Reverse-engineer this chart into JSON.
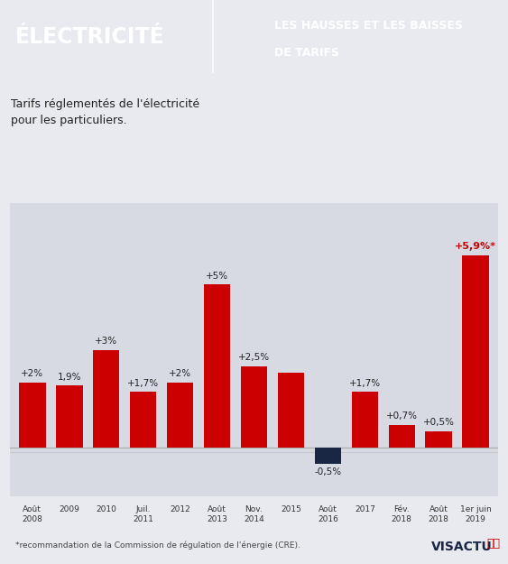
{
  "bars": [
    {
      "label": "Août\n2008",
      "value": 2.0,
      "color": "#cc0000",
      "text": "+2%"
    },
    {
      "label": "2009",
      "value": 1.9,
      "color": "#cc0000",
      "text": "1,9%"
    },
    {
      "label": "2010",
      "value": 3.0,
      "color": "#cc0000",
      "text": "+3%"
    },
    {
      "label": "Juil.\n2011",
      "value": 1.7,
      "color": "#cc0000",
      "text": "+1,7%"
    },
    {
      "label": "2012",
      "value": 2.0,
      "color": "#cc0000",
      "text": "+2%"
    },
    {
      "label": "Août\n2013",
      "value": 5.0,
      "color": "#cc0000",
      "text": "+5%"
    },
    {
      "label": "Nov.\n2014",
      "value": 2.5,
      "color": "#cc0000",
      "text": "+2,5%"
    },
    {
      "label": "2015",
      "value": 2.3,
      "color": "#cc0000",
      "text": ""
    },
    {
      "label": "Août\n2016",
      "value": -0.5,
      "color": "#1a2744",
      "text": "-0,5%"
    },
    {
      "label": "2017",
      "value": 1.7,
      "color": "#cc0000",
      "text": "+1,7%"
    },
    {
      "label": "Fév.\n2018",
      "value": 0.7,
      "color": "#cc0000",
      "text": "+0,7%"
    },
    {
      "label": "Août\n2018",
      "value": 0.5,
      "color": "#cc0000",
      "text": "+0,5%"
    },
    {
      "label": "1er juin\n2019",
      "value": 5.9,
      "color": "#cc0000",
      "text": "+5,9%*"
    }
  ],
  "title_left": "ÉLECTRICITÉ",
  "title_right_line1": "LES HAUSSES ET LES BAISSES",
  "title_right_line2": "DE TARIFS",
  "subtitle": "Tarifs réglementés de l'électricité\npour les particuliers.",
  "footnote": "*recommandation de la Commission de régulation de l'énergie (CRE).",
  "ylim_min": -1.5,
  "ylim_max": 7.5,
  "bg_top": "#e8eaf0",
  "bg_chart": "#e8eaf0",
  "header_bg": "#1a2744",
  "header_text_color": "#ffffff",
  "bar_area_bg": "#d8dae3",
  "red_color": "#cc0000",
  "dark_color": "#1a2744"
}
